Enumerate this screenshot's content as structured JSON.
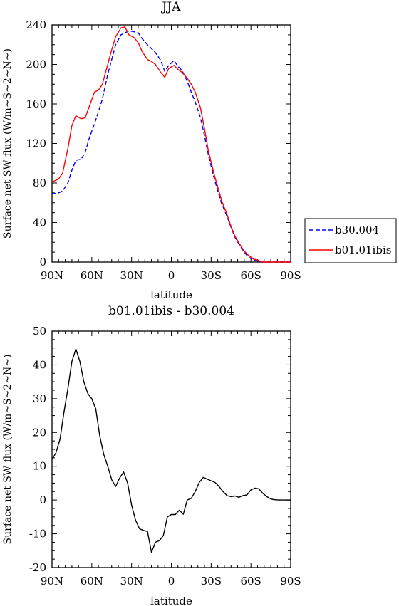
{
  "chart_data": [
    {
      "type": "line",
      "title": "JJA",
      "xlabel": "latitude",
      "ylabel": "Surface net SW flux (W/m~S~2~N~)",
      "xticks": [
        {
          "value": -90,
          "label": "90N"
        },
        {
          "value": -60,
          "label": "60N"
        },
        {
          "value": -30,
          "label": "30N"
        },
        {
          "value": 0,
          "label": "0"
        },
        {
          "value": 30,
          "label": "30S"
        },
        {
          "value": 60,
          "label": "60S"
        },
        {
          "value": 90,
          "label": "90S"
        }
      ],
      "yticks": [
        0,
        40,
        80,
        120,
        160,
        200,
        240
      ],
      "xlim": [
        -90,
        90
      ],
      "ylim": [
        0,
        240
      ],
      "legend_position": "right",
      "series": [
        {
          "name": "b30.004",
          "color": "#0000ff",
          "dash": "dashed",
          "x": [
            -90,
            -85,
            -82,
            -78,
            -75,
            -72,
            -68,
            -65,
            -62,
            -58,
            -55,
            -52,
            -48,
            -45,
            -42,
            -38,
            -35,
            -32,
            -28,
            -25,
            -22,
            -18,
            -15,
            -12,
            -8,
            -5,
            -2,
            2,
            5,
            8,
            12,
            15,
            18,
            22,
            25,
            28,
            32,
            35,
            38,
            42,
            45,
            48,
            52,
            55,
            58,
            62,
            65,
            68,
            72,
            75,
            78,
            82,
            85,
            90
          ],
          "y": [
            69,
            70,
            72,
            80,
            93,
            103,
            104,
            111,
            125,
            140,
            152,
            165,
            190,
            205,
            220,
            230,
            232,
            234,
            233,
            232,
            226,
            220,
            216,
            212,
            204,
            193,
            199,
            204,
            198,
            194,
            183,
            172,
            162,
            146,
            128,
            108,
            86,
            72,
            59,
            46,
            35,
            25,
            16,
            10,
            5,
            2,
            1,
            0,
            0,
            0,
            0,
            0,
            0,
            0
          ]
        },
        {
          "name": "b01.01ibis",
          "color": "#ff0000",
          "dash": "solid",
          "x": [
            -90,
            -85,
            -82,
            -78,
            -75,
            -72,
            -68,
            -65,
            -62,
            -58,
            -55,
            -52,
            -48,
            -45,
            -42,
            -38,
            -35,
            -32,
            -28,
            -25,
            -22,
            -18,
            -15,
            -12,
            -8,
            -5,
            -2,
            2,
            5,
            8,
            12,
            15,
            18,
            22,
            25,
            28,
            32,
            35,
            38,
            42,
            45,
            48,
            52,
            55,
            58,
            62,
            65,
            68,
            72,
            75,
            78,
            82,
            85,
            90
          ],
          "y": [
            81,
            84,
            90,
            115,
            138,
            148,
            145,
            146,
            157,
            172,
            174,
            180,
            200,
            215,
            228,
            237,
            238,
            230,
            227,
            222,
            213,
            205,
            203,
            200,
            192,
            187,
            196,
            199,
            195,
            192,
            186,
            180,
            172,
            156,
            135,
            112,
            90,
            76,
            62,
            48,
            36,
            26,
            17,
            11,
            7,
            3,
            2,
            0,
            0,
            0,
            0,
            0,
            0,
            0
          ]
        }
      ]
    },
    {
      "type": "line",
      "title": "b01.01ibis - b30.004",
      "xlabel": "latitude",
      "ylabel": "Surface net SW flux (W/m~S~2~N~)",
      "xticks": [
        {
          "value": -90,
          "label": "90N"
        },
        {
          "value": -60,
          "label": "60N"
        },
        {
          "value": -30,
          "label": "30N"
        },
        {
          "value": 0,
          "label": "0"
        },
        {
          "value": 30,
          "label": "30S"
        },
        {
          "value": 60,
          "label": "60S"
        },
        {
          "value": 90,
          "label": "90S"
        }
      ],
      "yticks": [
        -20,
        -10,
        0,
        10,
        20,
        30,
        40,
        50
      ],
      "xlim": [
        -90,
        90
      ],
      "ylim": [
        -20,
        50
      ],
      "series": [
        {
          "color": "#000000",
          "dash": "solid",
          "x": [
            -90,
            -87,
            -84,
            -81,
            -78,
            -75,
            -72,
            -69,
            -66,
            -63,
            -60,
            -57,
            -54,
            -51,
            -48,
            -45,
            -42,
            -39,
            -36,
            -33,
            -30,
            -27,
            -24,
            -21,
            -18,
            -15,
            -12,
            -9,
            -6,
            -3,
            0,
            3,
            6,
            9,
            12,
            15,
            18,
            21,
            24,
            27,
            30,
            33,
            36,
            39,
            42,
            45,
            48,
            51,
            54,
            57,
            60,
            63,
            66,
            69,
            72,
            75,
            78,
            81,
            84,
            87,
            90
          ],
          "y": [
            12,
            14,
            18,
            26,
            33,
            41,
            44.7,
            41,
            35,
            31.5,
            30,
            27,
            19,
            13.5,
            10,
            6,
            4,
            6.5,
            8.3,
            5,
            -1.5,
            -6,
            -8.5,
            -9,
            -9.3,
            -15.5,
            -12.5,
            -12,
            -10.5,
            -5,
            -4.3,
            -4.3,
            -3,
            -4.2,
            0,
            0.5,
            2.5,
            5.2,
            6.7,
            6.2,
            5.7,
            5.2,
            4,
            2.5,
            1.3,
            1,
            1.2,
            0.8,
            1.3,
            1.5,
            3,
            3.5,
            3.3,
            2,
            1,
            0.3,
            0.1,
            0,
            0,
            0,
            0
          ]
        }
      ]
    }
  ]
}
